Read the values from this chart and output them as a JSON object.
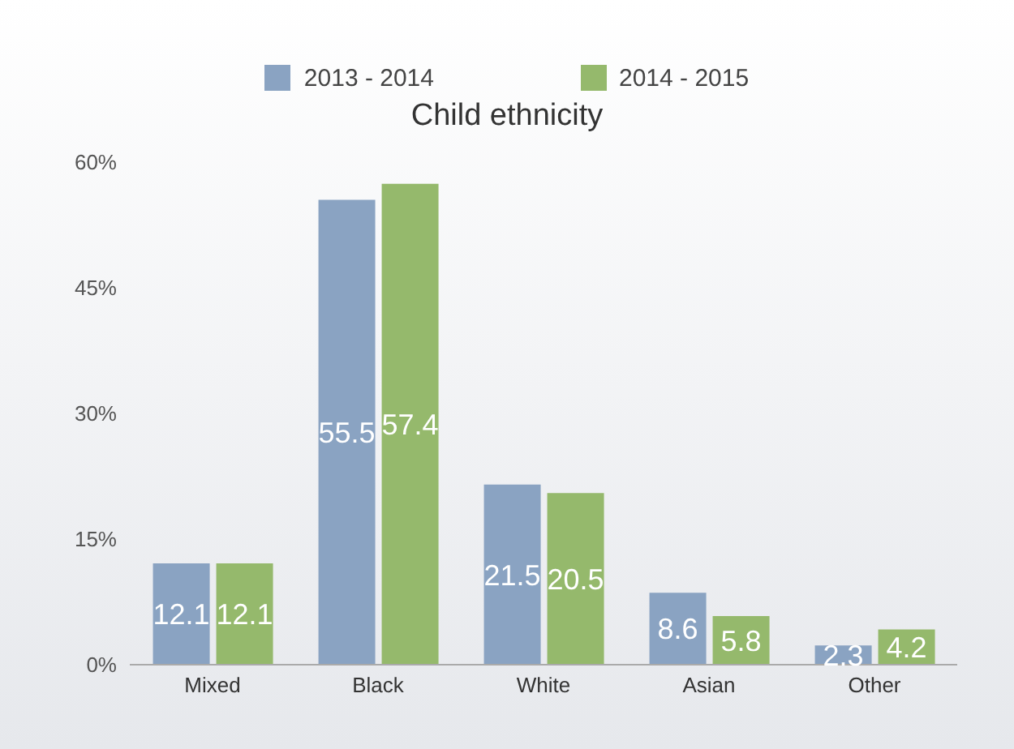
{
  "chart_data": {
    "type": "bar",
    "title": "Child ethnicity",
    "categories": [
      "Mixed",
      "Black",
      "White",
      "Asian",
      "Other"
    ],
    "series": [
      {
        "name": "2013 - 2014",
        "color": "#8aa3c2",
        "values": [
          12.1,
          55.5,
          21.5,
          8.6,
          2.3
        ]
      },
      {
        "name": "2014 - 2015",
        "color": "#95b96c",
        "values": [
          12.1,
          57.4,
          20.5,
          5.8,
          4.2
        ]
      }
    ],
    "ylim": [
      0,
      60
    ],
    "yticks": [
      {
        "value": 0,
        "label": "0%"
      },
      {
        "value": 15,
        "label": "15%"
      },
      {
        "value": 30,
        "label": "30%"
      },
      {
        "value": 45,
        "label": "45%"
      },
      {
        "value": 60,
        "label": "60%"
      }
    ],
    "grid": false,
    "legend": "top",
    "data_labels": true
  }
}
